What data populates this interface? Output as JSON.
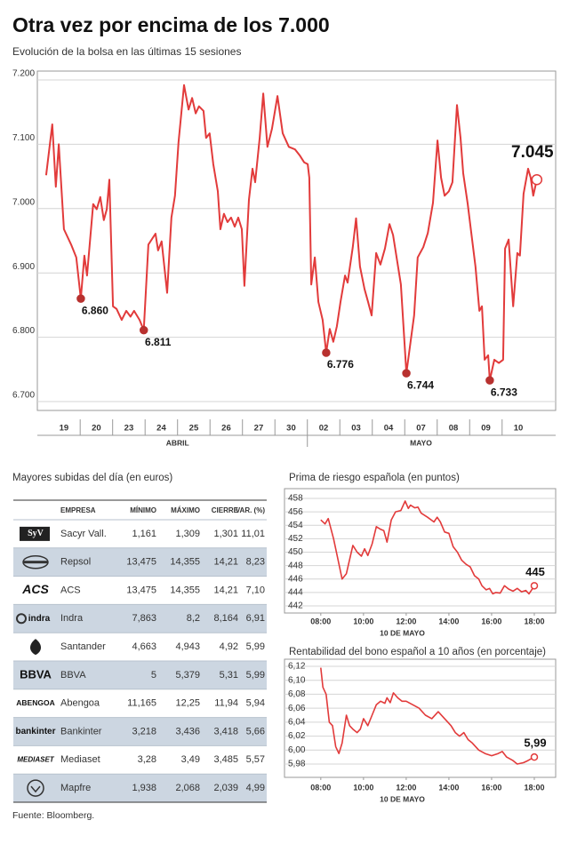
{
  "title": "Otra vez por encima de los 7.000",
  "subtitle": "Evolución de la bolsa en las últimas 15 sesiones",
  "source": "Fuente: Bloomberg.",
  "chart_data": [
    {
      "type": "line",
      "xlim": [
        -0.32,
        15.65
      ],
      "ylim": [
        6700,
        7200
      ],
      "yticks": [
        {
          "value": 6700,
          "label": "6.700"
        },
        {
          "value": 6800,
          "label": "6.800"
        },
        {
          "value": 6900,
          "label": "6.900"
        },
        {
          "value": 7000,
          "label": "7.000"
        },
        {
          "value": 7100,
          "label": "7.100"
        },
        {
          "value": 7200,
          "label": "7.200"
        }
      ],
      "xticks": [
        {
          "value": 0.5,
          "label": "19"
        },
        {
          "value": 1.5,
          "label": "20"
        },
        {
          "value": 2.5,
          "label": "23"
        },
        {
          "value": 3.5,
          "label": "24"
        },
        {
          "value": 4.5,
          "label": "25"
        },
        {
          "value": 5.5,
          "label": "26"
        },
        {
          "value": 6.5,
          "label": "27"
        },
        {
          "value": 7.5,
          "label": "30"
        },
        {
          "value": 8.5,
          "label": "02"
        },
        {
          "value": 9.5,
          "label": "03"
        },
        {
          "value": 10.5,
          "label": "04"
        },
        {
          "value": 11.5,
          "label": "07"
        },
        {
          "value": 12.5,
          "label": "08"
        },
        {
          "value": 13.5,
          "label": "09"
        },
        {
          "value": 14.5,
          "label": "10"
        }
      ],
      "x_groups": [
        {
          "label": "ABRIL",
          "from": 0,
          "to": 8
        },
        {
          "label": "MAYO",
          "from": 8,
          "to": 15
        }
      ],
      "grid": true,
      "x": [
        -0.05,
        0.14,
        0.25,
        0.34,
        0.5,
        0.72,
        0.88,
        1.02,
        1.13,
        1.21,
        1.4,
        1.51,
        1.62,
        1.73,
        1.82,
        1.9,
        2.01,
        2.12,
        2.28,
        2.42,
        2.55,
        2.66,
        2.83,
        2.96,
        3.1,
        3.32,
        3.4,
        3.51,
        3.68,
        3.81,
        3.92,
        4.03,
        4.2,
        4.34,
        4.45,
        4.56,
        4.66,
        4.8,
        4.88,
        4.99,
        5.1,
        5.24,
        5.32,
        5.43,
        5.54,
        5.65,
        5.76,
        5.87,
        5.98,
        6.06,
        6.2,
        6.31,
        6.39,
        6.53,
        6.64,
        6.77,
        6.91,
        7.08,
        7.24,
        7.43,
        7.62,
        7.76,
        7.9,
        8.01,
        8.06,
        8.12,
        8.23,
        8.34,
        8.47,
        8.58,
        8.69,
        8.8,
        8.91,
        9.02,
        9.16,
        9.24,
        9.4,
        9.5,
        9.62,
        9.76,
        9.87,
        9.98,
        10.12,
        10.25,
        10.39,
        10.53,
        10.64,
        10.77,
        10.88,
        11.05,
        11.19,
        11.29,
        11.4,
        11.57,
        11.71,
        11.87,
        12.01,
        12.12,
        12.23,
        12.36,
        12.47,
        12.61,
        12.72,
        12.8,
        12.94,
        13.05,
        13.18,
        13.3,
        13.38,
        13.46,
        13.57,
        13.62,
        13.76,
        13.9,
        14.03,
        14.09,
        14.2,
        14.34,
        14.47,
        14.55,
        14.66,
        14.8,
        14.88,
        14.96,
        15.07
      ],
      "series": [
        {
          "color": "#e23b3b",
          "values": [
            7052,
            7131,
            7034,
            7100,
            6968,
            6944,
            6924,
            6860,
            6927,
            6896,
            7007,
            6999,
            7018,
            6982,
            6999,
            7045,
            6848,
            6844,
            6827,
            6841,
            6832,
            6841,
            6827,
            6811,
            6944,
            6961,
            6935,
            6949,
            6869,
            6986,
            7020,
            7103,
            7192,
            7154,
            7172,
            7148,
            7159,
            7152,
            7110,
            7117,
            7069,
            7027,
            6968,
            6992,
            6979,
            6986,
            6972,
            6986,
            6968,
            6880,
            7014,
            7062,
            7041,
            7110,
            7179,
            7096,
            7124,
            7175,
            7117,
            7096,
            7092,
            7083,
            7072,
            7069,
            7048,
            6882,
            6924,
            6855,
            6827,
            6776,
            6813,
            6793,
            6817,
            6855,
            6896,
            6885,
            6940,
            6985,
            6910,
            6875,
            6855,
            6834,
            6931,
            6913,
            6938,
            6976,
            6959,
            6917,
            6882,
            6744,
            6797,
            6834,
            6924,
            6940,
            6962,
            7009,
            7106,
            7048,
            7020,
            7027,
            7041,
            7161,
            7110,
            7055,
            7007,
            6962,
            6910,
            6841,
            6848,
            6765,
            6772,
            6733,
            6765,
            6760,
            6765,
            6938,
            6952,
            6848,
            6931,
            6927,
            7023,
            7062,
            7048,
            7020,
            7045
          ],
          "value_labels": [
            null,
            null,
            null,
            null,
            null,
            null,
            null,
            "6.860",
            null,
            null,
            null,
            null,
            null,
            null,
            null,
            null,
            null,
            null,
            null,
            null,
            null,
            null,
            null,
            "6.811",
            null,
            null,
            null,
            null,
            null,
            null,
            null,
            null,
            null,
            null,
            null,
            null,
            null,
            null,
            null,
            null,
            null,
            null,
            null,
            null,
            null,
            null,
            null,
            null,
            null,
            null,
            null,
            null,
            null,
            null,
            null,
            null,
            null,
            null,
            null,
            null,
            null,
            null,
            null,
            null,
            null,
            null,
            null,
            null,
            null,
            "6.776",
            null,
            null,
            null,
            null,
            null,
            null,
            null,
            null,
            null,
            null,
            null,
            null,
            null,
            null,
            null,
            null,
            null,
            null,
            null,
            "6.744",
            null,
            null,
            null,
            null,
            null,
            null,
            null,
            null,
            null,
            null,
            null,
            null,
            null,
            null,
            null,
            null,
            null,
            null,
            null,
            null,
            null,
            "6.733",
            null,
            null,
            null,
            null,
            null,
            null,
            null,
            null,
            null,
            null,
            null,
            null,
            "7.045"
          ]
        }
      ]
    },
    {
      "type": "line",
      "title": "Prima de riesgo española (en puntos)",
      "x_label": "10 DE MAYO",
      "xlim": [
        6.3,
        19
      ],
      "ylim": [
        442,
        458
      ],
      "yticks": [
        442,
        444,
        446,
        448,
        450,
        452,
        454,
        456,
        458
      ],
      "xticks": [
        {
          "value": 8,
          "label": "08:00"
        },
        {
          "value": 10,
          "label": "10:00"
        },
        {
          "value": 12,
          "label": "12:00"
        },
        {
          "value": 14,
          "label": "14:00"
        },
        {
          "value": 16,
          "label": "16:00"
        },
        {
          "value": 18,
          "label": "18:00"
        }
      ],
      "grid": true,
      "x": [
        8.0,
        8.2,
        8.35,
        8.6,
        8.8,
        9.0,
        9.2,
        9.5,
        9.7,
        9.9,
        10.05,
        10.2,
        10.4,
        10.6,
        10.8,
        10.95,
        11.1,
        11.3,
        11.5,
        11.75,
        11.95,
        12.1,
        12.2,
        12.4,
        12.55,
        12.7,
        13.0,
        13.3,
        13.45,
        13.6,
        13.8,
        14.0,
        14.2,
        14.4,
        14.6,
        14.8,
        15.0,
        15.2,
        15.4,
        15.55,
        15.75,
        15.9,
        16.05,
        16.2,
        16.4,
        16.6,
        16.8,
        17.0,
        17.2,
        17.4,
        17.6,
        17.75,
        17.9,
        18.0
      ],
      "series": [
        {
          "color": "#e23b3b",
          "values": [
            454.8,
            454.2,
            455,
            452,
            449,
            446,
            446.8,
            451,
            450,
            449.4,
            450.5,
            449.5,
            451.2,
            453.8,
            453.4,
            453.2,
            451.5,
            454.8,
            456,
            456.2,
            457.6,
            456.5,
            457,
            456.6,
            456.7,
            455.8,
            455.2,
            454.5,
            455.2,
            454.5,
            453,
            452.8,
            450.8,
            450,
            448.8,
            448.2,
            447.8,
            446.5,
            446,
            445,
            444.4,
            444.6,
            443.8,
            444,
            443.9,
            445,
            444.5,
            444.2,
            444.6,
            444.1,
            444.3,
            443.8,
            444.5,
            445
          ],
          "value_labels": [
            null,
            null,
            null,
            null,
            null,
            null,
            null,
            null,
            null,
            null,
            null,
            null,
            null,
            null,
            null,
            null,
            null,
            null,
            null,
            null,
            null,
            null,
            null,
            null,
            null,
            null,
            null,
            null,
            null,
            null,
            null,
            null,
            null,
            null,
            null,
            null,
            null,
            null,
            null,
            null,
            null,
            null,
            null,
            null,
            null,
            null,
            null,
            null,
            null,
            null,
            null,
            null,
            null,
            "445"
          ]
        }
      ]
    },
    {
      "type": "line",
      "title": "Rentabilidad del bono español a 10 años (en porcentaje)",
      "x_label": "10 DE MAYO",
      "xlim": [
        6.3,
        19
      ],
      "ylim": [
        5.98,
        6.12
      ],
      "yticks": [
        {
          "value": 5.98,
          "label": "5,98"
        },
        {
          "value": 6.0,
          "label": "6,00"
        },
        {
          "value": 6.02,
          "label": "6,02"
        },
        {
          "value": 6.04,
          "label": "6,04"
        },
        {
          "value": 6.06,
          "label": "6,06"
        },
        {
          "value": 6.08,
          "label": "6,08"
        },
        {
          "value": 6.1,
          "label": "6,10"
        },
        {
          "value": 6.12,
          "label": "6,12"
        }
      ],
      "xticks": [
        {
          "value": 8,
          "label": "08:00"
        },
        {
          "value": 10,
          "label": "10:00"
        },
        {
          "value": 12,
          "label": "12:00"
        },
        {
          "value": 14,
          "label": "14:00"
        },
        {
          "value": 16,
          "label": "16:00"
        },
        {
          "value": 18,
          "label": "18:00"
        }
      ],
      "grid": true,
      "x": [
        8.0,
        8.1,
        8.25,
        8.4,
        8.55,
        8.7,
        8.85,
        9.0,
        9.2,
        9.35,
        9.5,
        9.7,
        9.85,
        10.0,
        10.2,
        10.4,
        10.6,
        10.8,
        11.0,
        11.1,
        11.25,
        11.4,
        11.6,
        11.8,
        12.0,
        12.3,
        12.6,
        12.9,
        13.2,
        13.5,
        13.8,
        14.1,
        14.3,
        14.5,
        14.7,
        14.9,
        15.1,
        15.4,
        15.7,
        16.0,
        16.3,
        16.5,
        16.7,
        17.0,
        17.2,
        17.5,
        17.7,
        18.0
      ],
      "series": [
        {
          "color": "#e23b3b",
          "values": [
            6.118,
            6.09,
            6.08,
            6.04,
            6.035,
            6.005,
            5.995,
            6.01,
            6.05,
            6.035,
            6.03,
            6.025,
            6.03,
            6.045,
            6.035,
            6.05,
            6.065,
            6.07,
            6.067,
            6.075,
            6.068,
            6.082,
            6.075,
            6.07,
            6.07,
            6.065,
            6.06,
            6.05,
            6.045,
            6.055,
            6.045,
            6.035,
            6.025,
            6.02,
            6.025,
            6.015,
            6.01,
            6.0,
            5.995,
            5.992,
            5.995,
            5.998,
            5.99,
            5.985,
            5.98,
            5.982,
            5.985,
            5.99
          ],
          "value_labels": [
            null,
            null,
            null,
            null,
            null,
            null,
            null,
            null,
            null,
            null,
            null,
            null,
            null,
            null,
            null,
            null,
            null,
            null,
            null,
            null,
            null,
            null,
            null,
            null,
            null,
            null,
            null,
            null,
            null,
            null,
            null,
            null,
            null,
            null,
            null,
            null,
            null,
            null,
            null,
            null,
            null,
            null,
            null,
            null,
            null,
            null,
            null,
            "5,99"
          ]
        }
      ]
    }
  ],
  "table": {
    "title": "Mayores subidas del día (en euros)",
    "columns": [
      "EMPRESA",
      "MÍNIMO",
      "MÁXIMO",
      "CIERRE",
      "VAR. (%)"
    ],
    "rows": [
      {
        "logo": "SyV",
        "name": "Sacyr Vall.",
        "cells": [
          "1,161",
          "1,309",
          "1,301",
          "11,01"
        ]
      },
      {
        "name": "Repsol",
        "cells": [
          "13,475",
          "14,355",
          "14,21",
          "8,23"
        ]
      },
      {
        "logo": "ACS",
        "name": "ACS",
        "cells": [
          "13,475",
          "14,355",
          "14,21",
          "7,10"
        ]
      },
      {
        "logo": "indra",
        "name": "Indra",
        "cells": [
          "7,863",
          "8,2",
          "8,164",
          "6,91"
        ]
      },
      {
        "name": "Santander",
        "cells": [
          "4,663",
          "4,943",
          "4,92",
          "5,99"
        ]
      },
      {
        "logo": "BBVA",
        "name": "BBVA",
        "cells": [
          "5",
          "5,379",
          "5,31",
          "5,99"
        ]
      },
      {
        "logo": "ABENGOA",
        "name": "Abengoa",
        "cells": [
          "11,165",
          "12,25",
          "11,94",
          "5,94"
        ]
      },
      {
        "logo": "bankinter",
        "name": "Bankinter",
        "cells": [
          "3,218",
          "3,436",
          "3,418",
          "5,66"
        ]
      },
      {
        "logo": "MEDIASET",
        "name": "Mediaset",
        "cells": [
          "3,28",
          "3,49",
          "3,485",
          "5,57"
        ]
      },
      {
        "name": "Mapfre",
        "cells": [
          "1,938",
          "2,068",
          "2,039",
          "4,99"
        ]
      }
    ]
  }
}
